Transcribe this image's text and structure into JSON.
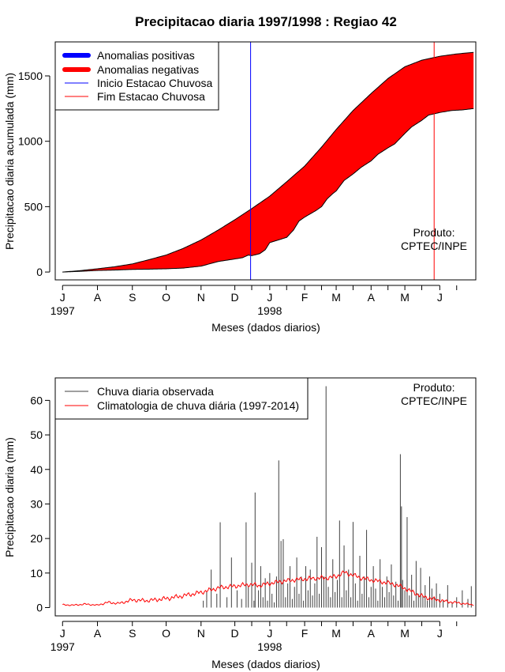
{
  "title": "Precipitacao diaria 1997/1998 : Regiao 42",
  "chart_data": [
    {
      "type": "area",
      "id": "cumulative",
      "ylabel": "Precipitacao diaria acumulada (mm)",
      "xlabel": "Meses (dados diarios)",
      "ylim": [
        -60,
        1760
      ],
      "yticks": [
        0,
        500,
        1000,
        1500
      ],
      "xlim": [
        -6.5,
        367
      ],
      "month_ticks": [
        {
          "day": 0,
          "label": "J"
        },
        {
          "day": 31,
          "label": "A"
        },
        {
          "day": 62,
          "label": "S"
        },
        {
          "day": 92,
          "label": "O"
        },
        {
          "day": 123,
          "label": "N"
        },
        {
          "day": 153,
          "label": "D"
        },
        {
          "day": 184,
          "label": "J"
        },
        {
          "day": 215,
          "label": "F"
        },
        {
          "day": 243,
          "label": "M"
        },
        {
          "day": 274,
          "label": "A"
        },
        {
          "day": 304,
          "label": "M"
        },
        {
          "day": 335,
          "label": "J"
        }
      ],
      "minor_ticks": [
        168,
        199,
        230,
        258,
        289,
        319,
        350
      ],
      "year_labels": [
        {
          "day": 0,
          "label": "1997"
        },
        {
          "day": 184,
          "label": "1998"
        }
      ],
      "climatology_cumulative": {
        "days": [
          0,
          15,
          31,
          46,
          62,
          77,
          92,
          107,
          123,
          138,
          153,
          168,
          184,
          199,
          215,
          230,
          243,
          258,
          274,
          289,
          304,
          319,
          335,
          350,
          365
        ],
        "values": [
          0,
          10,
          25,
          40,
          62,
          95,
          130,
          180,
          245,
          320,
          400,
          485,
          580,
          690,
          810,
          955,
          1090,
          1235,
          1365,
          1480,
          1570,
          1620,
          1650,
          1668,
          1680
        ]
      },
      "observed_cumulative": {
        "days": [
          0,
          15,
          31,
          46,
          62,
          77,
          92,
          107,
          123,
          138,
          153,
          160,
          165,
          168,
          175,
          180,
          184,
          199,
          205,
          210,
          215,
          225,
          230,
          235,
          240,
          243,
          250,
          258,
          265,
          274,
          280,
          289,
          295,
          304,
          310,
          319,
          325,
          335,
          345,
          355,
          365
        ],
        "values": [
          0,
          5,
          12,
          15,
          20,
          22,
          25,
          30,
          45,
          80,
          100,
          110,
          130,
          125,
          140,
          170,
          225,
          265,
          320,
          390,
          420,
          470,
          500,
          560,
          600,
          620,
          700,
          750,
          800,
          850,
          900,
          950,
          980,
          1060,
          1110,
          1160,
          1200,
          1220,
          1235,
          1240,
          1250
        ]
      },
      "season_start_day": 167,
      "season_end_day": 330,
      "legend": [
        {
          "label": "Anomalias positivas",
          "color": "#0000ff",
          "style": "thick"
        },
        {
          "label": "Anomalias negativas",
          "color": "#ff0000",
          "style": "thick"
        },
        {
          "label": "Inicio Estacao Chuvosa",
          "color": "#0000ff",
          "style": "thin"
        },
        {
          "label": "Fim Estacao Chuvosa",
          "color": "#ff0000",
          "style": "thin"
        }
      ],
      "annotation": [
        "Produto:",
        "CPTEC/INPE"
      ],
      "colors": {
        "positive": "#0000ff",
        "negative": "#ff0000",
        "season_start": "#0000ff",
        "season_end": "#ff0000"
      }
    },
    {
      "type": "bar",
      "id": "daily",
      "ylabel": "Precipitacao diaria (mm)",
      "xlabel": "Meses (dados diarios)",
      "ylim": [
        -2.4,
        66.5
      ],
      "yticks": [
        0,
        10,
        20,
        30,
        40,
        50,
        60
      ],
      "xlim": [
        -6.5,
        367
      ],
      "legend": [
        {
          "label": "Chuva diaria observada",
          "color": "#404040"
        },
        {
          "label": "Climatologia de chuva diária (1997-2014)",
          "color": "#ff0000"
        }
      ],
      "annotation": [
        "Produto:",
        "CPTEC/INPE"
      ],
      "observed_daily": {
        "days": [
          125,
          128,
          132,
          137,
          140,
          146,
          150,
          155,
          159,
          163,
          165,
          168,
          170,
          171,
          174,
          176,
          178,
          180,
          182,
          184,
          186,
          188,
          190,
          192,
          194,
          196,
          198,
          200,
          202,
          204,
          206,
          208,
          210,
          212,
          214,
          216,
          218,
          220,
          222,
          224,
          226,
          228,
          230,
          232,
          234,
          236,
          238,
          240,
          242,
          244,
          246,
          248,
          250,
          252,
          254,
          256,
          258,
          260,
          262,
          264,
          266,
          268,
          270,
          272,
          274,
          276,
          278,
          280,
          282,
          284,
          286,
          288,
          290,
          292,
          294,
          296,
          298,
          300,
          301,
          302,
          304,
          306,
          308,
          310,
          312,
          314,
          316,
          318,
          320,
          322,
          324,
          326,
          328,
          330,
          332,
          335,
          338,
          342,
          346,
          350,
          355,
          360,
          363
        ],
        "values": [
          2.0,
          4.5,
          11.0,
          4.0,
          24.7,
          3.0,
          14.5,
          5.0,
          2.5,
          24.7,
          6.0,
          13.0,
          2.0,
          33.3,
          5.0,
          12.0,
          3.0,
          8.5,
          2.0,
          10.0,
          4.0,
          1.5,
          9.0,
          42.6,
          19.3,
          19.8,
          3.0,
          7.0,
          12.0,
          2.5,
          6.0,
          14.5,
          4.0,
          9.0,
          2.0,
          12.0,
          5.0,
          11.0,
          3.5,
          7.0,
          20.5,
          4.0,
          17.5,
          9.0,
          64.1,
          6.0,
          3.0,
          14.0,
          4.5,
          8.0,
          25.2,
          3.0,
          18.0,
          5.0,
          11.0,
          3.0,
          24.8,
          7.0,
          2.0,
          15.0,
          4.0,
          9.0,
          22.5,
          3.0,
          6.0,
          12.0,
          5.5,
          2.0,
          14.0,
          6.0,
          3.0,
          9.0,
          4.5,
          12.5,
          3.5,
          7.5,
          2.0,
          44.4,
          29.3,
          8.0,
          5.0,
          26.2,
          3.5,
          9.5,
          2.0,
          13.5,
          4.0,
          11.5,
          3.5,
          6.5,
          2.0,
          9.0,
          5.5,
          3.0,
          7.0,
          4.0,
          2.0,
          6.5,
          1.5,
          3.0,
          5.0,
          2.5,
          6.2
        ]
      },
      "climatology_daily": {
        "days": [
          0,
          10,
          20,
          31,
          40,
          50,
          62,
          75,
          92,
          105,
          115,
          123,
          130,
          140,
          153,
          165,
          175,
          184,
          195,
          205,
          215,
          225,
          235,
          243,
          250,
          258,
          265,
          274,
          285,
          295,
          304,
          312,
          320,
          330,
          340,
          350,
          360,
          365
        ],
        "values": [
          0.8,
          0.7,
          1.0,
          0.7,
          1.5,
          1.2,
          2.2,
          2.0,
          2.6,
          3.3,
          3.9,
          4.4,
          5.0,
          5.8,
          6.2,
          6.7,
          6.4,
          7.0,
          7.6,
          8.0,
          8.3,
          8.5,
          8.6,
          9.0,
          10.2,
          9.4,
          8.6,
          8.0,
          7.4,
          6.7,
          5.6,
          4.3,
          3.2,
          2.4,
          1.8,
          1.4,
          1.0,
          0.8
        ]
      },
      "colors": {
        "observed": "#404040",
        "climatology": "#ff0000"
      }
    }
  ]
}
